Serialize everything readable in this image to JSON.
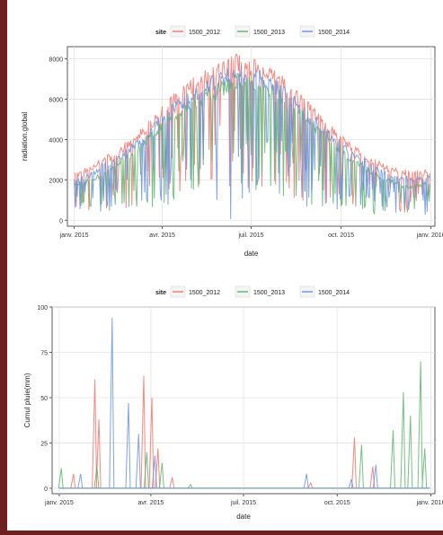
{
  "chart_data": [
    {
      "type": "line",
      "legend_title": "site",
      "legend_position": "top",
      "xlabel": "date",
      "ylabel": "radiation.global",
      "grid": true,
      "x_range": [
        "2014-12-25",
        "2016-01-05"
      ],
      "ylim": [
        -300,
        8600
      ],
      "x_ticks": [
        {
          "date": "2015-01-01",
          "label": "janv. 2015"
        },
        {
          "date": "2015-04-01",
          "label": "avr. 2015"
        },
        {
          "date": "2015-07-01",
          "label": "juil. 2015"
        },
        {
          "date": "2015-10-01",
          "label": "oct. 2015"
        },
        {
          "date": "2016-01-01",
          "label": "janv. 2016"
        }
      ],
      "y_ticks": [
        0,
        2000,
        4000,
        6000,
        8000
      ],
      "series": [
        {
          "name": "1500_2012",
          "color": "#f0766d",
          "points": [
            [
              "2015-01-01",
              2300
            ],
            [
              "2015-01-15",
              2600
            ],
            [
              "2015-02-01",
              3100
            ],
            [
              "2015-02-15",
              3500
            ],
            [
              "2015-03-01",
              4100
            ],
            [
              "2015-03-15",
              4700
            ],
            [
              "2015-04-01",
              5600
            ],
            [
              "2015-04-15",
              6300
            ],
            [
              "2015-05-01",
              6900
            ],
            [
              "2015-05-15",
              7300
            ],
            [
              "2015-06-01",
              7700
            ],
            [
              "2015-06-15",
              8100
            ],
            [
              "2015-07-01",
              7900
            ],
            [
              "2015-07-15",
              7600
            ],
            [
              "2015-08-01",
              7100
            ],
            [
              "2015-08-15",
              6400
            ],
            [
              "2015-09-01",
              5600
            ],
            [
              "2015-09-15",
              4900
            ],
            [
              "2015-10-01",
              4200
            ],
            [
              "2015-10-15",
              3600
            ],
            [
              "2015-11-01",
              3100
            ],
            [
              "2015-11-15",
              2700
            ],
            [
              "2015-12-01",
              2500
            ],
            [
              "2015-12-15",
              2400
            ],
            [
              "2015-12-31",
              2500
            ]
          ]
        },
        {
          "name": "1500_2013",
          "color": "#5fb370",
          "points": [
            [
              "2015-01-01",
              1800
            ],
            [
              "2015-01-15",
              2000
            ],
            [
              "2015-02-01",
              2400
            ],
            [
              "2015-02-15",
              2900
            ],
            [
              "2015-03-01",
              3400
            ],
            [
              "2015-03-15",
              4000
            ],
            [
              "2015-04-01",
              4900
            ],
            [
              "2015-04-15",
              5500
            ],
            [
              "2015-05-01",
              6000
            ],
            [
              "2015-05-15",
              6400
            ],
            [
              "2015-06-01",
              6800
            ],
            [
              "2015-06-15",
              7200
            ],
            [
              "2015-07-01",
              7000
            ],
            [
              "2015-07-15",
              6800
            ],
            [
              "2015-08-01",
              6300
            ],
            [
              "2015-08-15",
              5700
            ],
            [
              "2015-09-01",
              4900
            ],
            [
              "2015-09-15",
              4300
            ],
            [
              "2015-10-01",
              3600
            ],
            [
              "2015-10-15",
              3000
            ],
            [
              "2015-11-01",
              2500
            ],
            [
              "2015-11-15",
              2100
            ],
            [
              "2015-12-01",
              1800
            ],
            [
              "2015-12-15",
              1700
            ],
            [
              "2015-12-31",
              1900
            ]
          ]
        },
        {
          "name": "1500_2014",
          "color": "#6c93d8",
          "points": [
            [
              "2015-01-01",
              2000
            ],
            [
              "2015-01-15",
              2300
            ],
            [
              "2015-02-01",
              2800
            ],
            [
              "2015-02-15",
              3200
            ],
            [
              "2015-03-01",
              3700
            ],
            [
              "2015-03-15",
              4300
            ],
            [
              "2015-04-01",
              5200
            ],
            [
              "2015-04-15",
              5900
            ],
            [
              "2015-05-01",
              6400
            ],
            [
              "2015-05-15",
              6900
            ],
            [
              "2015-06-01",
              7300
            ],
            [
              "2015-06-15",
              7700
            ],
            [
              "2015-07-01",
              7500
            ],
            [
              "2015-07-15",
              7200
            ],
            [
              "2015-08-01",
              6700
            ],
            [
              "2015-08-15",
              6000
            ],
            [
              "2015-09-01",
              5200
            ],
            [
              "2015-09-15",
              4500
            ],
            [
              "2015-10-01",
              3900
            ],
            [
              "2015-10-15",
              3300
            ],
            [
              "2015-11-01",
              2800
            ],
            [
              "2015-11-15",
              2400
            ],
            [
              "2015-12-01",
              2200
            ],
            [
              "2015-12-15",
              2100
            ],
            [
              "2015-12-31",
              2200
            ]
          ]
        }
      ]
    },
    {
      "type": "line",
      "legend_title": "site",
      "legend_position": "top",
      "xlabel": "date",
      "ylabel": "Cumul pluie(mm)",
      "grid": true,
      "x_range": [
        "2014-12-25",
        "2016-01-05"
      ],
      "ylim": [
        -3,
        100
      ],
      "x_ticks": [
        {
          "date": "2015-01-01",
          "label": "janv. 2015"
        },
        {
          "date": "2015-04-01",
          "label": "avr. 2015"
        },
        {
          "date": "2015-07-01",
          "label": "juil. 2015"
        },
        {
          "date": "2015-10-01",
          "label": "oct. 2015"
        },
        {
          "date": "2016-01-01",
          "label": "janv. 2016"
        }
      ],
      "y_ticks": [
        0,
        25,
        50,
        75,
        100
      ],
      "series": [
        {
          "name": "1500_2012",
          "color": "#f0766d",
          "peaks": [
            [
              "2015-01-15",
              8
            ],
            [
              "2015-02-05",
              60
            ],
            [
              "2015-02-09",
              38
            ],
            [
              "2015-03-25",
              62
            ],
            [
              "2015-04-02",
              50
            ],
            [
              "2015-04-08",
              22
            ],
            [
              "2015-04-22",
              6
            ],
            [
              "2015-09-05",
              3
            ],
            [
              "2015-10-18",
              28
            ],
            [
              "2015-11-05",
              12
            ]
          ]
        },
        {
          "name": "1500_2013",
          "color": "#5fb370",
          "peaks": [
            [
              "2015-01-03",
              11
            ],
            [
              "2015-02-07",
              12
            ],
            [
              "2015-03-28",
              20
            ],
            [
              "2015-04-12",
              14
            ],
            [
              "2015-05-10",
              2
            ],
            [
              "2015-10-25",
              24
            ],
            [
              "2015-11-25",
              32
            ],
            [
              "2015-12-05",
              53
            ],
            [
              "2015-12-12",
              40
            ],
            [
              "2015-12-22",
              70
            ],
            [
              "2015-12-26",
              22
            ]
          ]
        },
        {
          "name": "1500_2014",
          "color": "#6c93d8",
          "peaks": [
            [
              "2015-01-22",
              8
            ],
            [
              "2015-02-22",
              94
            ],
            [
              "2015-03-10",
              47
            ],
            [
              "2015-03-20",
              30
            ],
            [
              "2015-04-05",
              18
            ],
            [
              "2015-09-01",
              8
            ],
            [
              "2015-10-15",
              5
            ],
            [
              "2015-11-08",
              13
            ]
          ]
        }
      ]
    }
  ]
}
